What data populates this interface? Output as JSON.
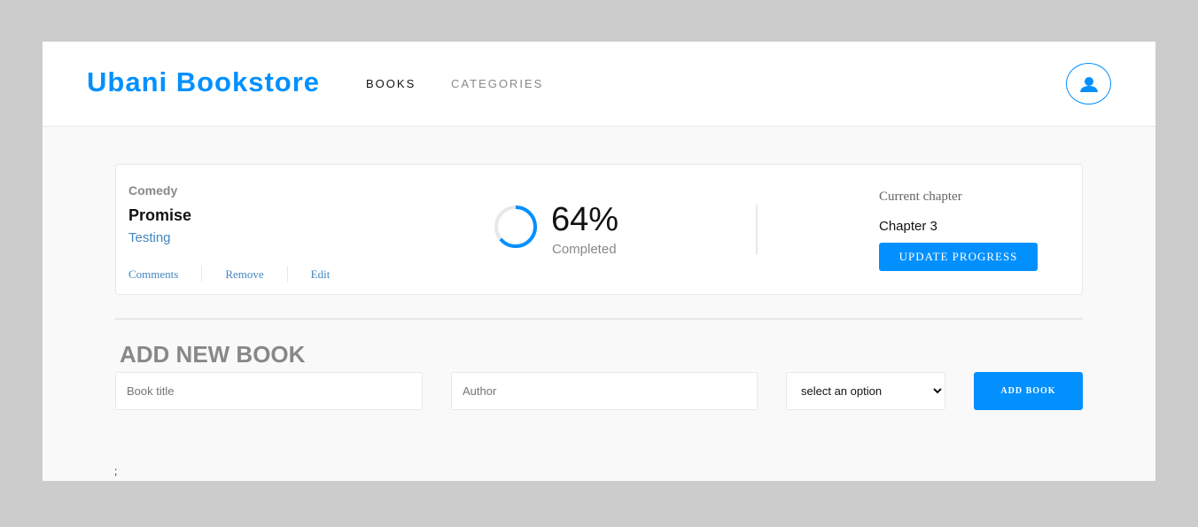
{
  "header": {
    "logo": "Ubani Bookstore",
    "nav": [
      {
        "label": "BOOKS"
      },
      {
        "label": "CATEGORIES"
      }
    ],
    "user_icon": "user-icon",
    "accent": "#0290ff"
  },
  "book": {
    "category": "Comedy",
    "title": "Promise",
    "author": "Testing",
    "actions": [
      "Comments",
      "Remove",
      "Edit"
    ],
    "progress_percent": 64,
    "progress_label": "64%",
    "completed_label": "Completed",
    "current_chapter_label": "Current chapter",
    "current_chapter": "Chapter 3",
    "update_button": "UPDATE PROGRESS"
  },
  "form": {
    "heading": "ADD NEW BOOK",
    "title_placeholder": "Book title",
    "author_placeholder": "Author",
    "select_value": "select an option",
    "submit": "ADD BOOK"
  },
  "footer_text": ";"
}
